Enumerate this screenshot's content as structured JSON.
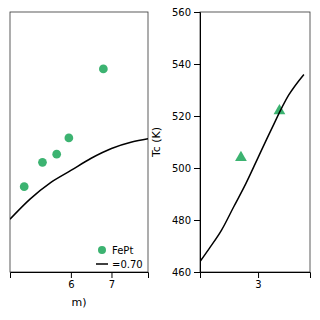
{
  "chart_data": [
    {
      "type": "scatter",
      "xlabel": "m)",
      "series": [
        {
          "name": "FePt",
          "type": "scatter",
          "color": "#3cb371",
          "marker": "circle",
          "x": [
            4.85,
            5.3,
            5.65,
            5.95,
            6.8
          ],
          "values": [
            531.5,
            534.5,
            535.5,
            537.5,
            546.0
          ]
        },
        {
          "name": "=0.70",
          "type": "line",
          "color": "#000000",
          "x": [
            4.5,
            5.0,
            5.5,
            6.0,
            6.5,
            7.0,
            7.5,
            7.9
          ],
          "values": [
            527.5,
            530.0,
            532.0,
            533.5,
            535.0,
            536.2,
            537.0,
            537.4
          ]
        }
      ],
      "xlim": [
        4.5,
        7.9
      ],
      "ylim": [
        521,
        553
      ],
      "xticks": [
        6,
        7
      ],
      "tick_labels": "x",
      "legend": "lower right"
    },
    {
      "type": "scatter",
      "ylabel": "Tc (K)",
      "series": [
        {
          "type": "scatter",
          "color": "#3cb371",
          "marker": "triangle",
          "x": [
            2.72,
            3.35
          ],
          "values": [
            504,
            522
          ]
        },
        {
          "type": "line",
          "color": "#000000",
          "x": [
            2.05,
            2.2,
            2.4,
            2.6,
            2.8,
            3.0,
            3.2,
            3.5,
            3.75
          ],
          "values": [
            464,
            469,
            476,
            485,
            494,
            504,
            514,
            528,
            536
          ]
        }
      ],
      "xlim": [
        2.05,
        3.85
      ],
      "ylim": [
        460,
        560
      ],
      "xticks": [
        3
      ],
      "yticks": [
        460,
        480,
        500,
        520,
        540,
        560
      ]
    }
  ]
}
